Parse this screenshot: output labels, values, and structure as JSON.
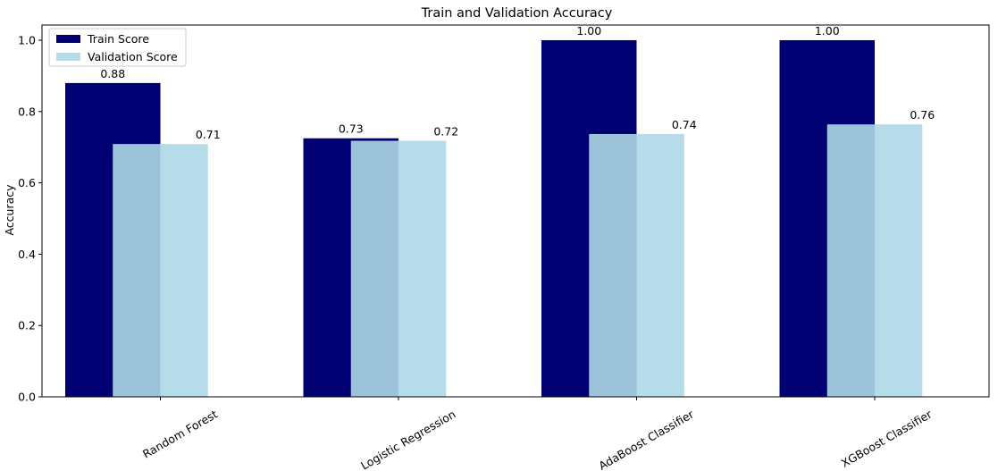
{
  "chart_data": {
    "type": "bar",
    "title": "Train and Validation Accuracy",
    "xlabel": "",
    "ylabel": "Accuracy",
    "categories": [
      "Random Forest",
      "Logistic Regression",
      "AdaBoost Classifier",
      "XGBoost Classifier"
    ],
    "series": [
      {
        "name": "Train Score",
        "values": [
          0.88,
          0.725,
          1.0,
          1.0
        ],
        "labels": [
          "0.88",
          "0.73",
          "1.00",
          "1.00"
        ],
        "color": "#000072",
        "opacity": 1.0
      },
      {
        "name": "Validation Score",
        "values": [
          0.709,
          0.718,
          0.737,
          0.764
        ],
        "labels": [
          "0.71",
          "0.72",
          "0.74",
          "0.76"
        ],
        "color": "#add8e6",
        "opacity": 0.9
      }
    ],
    "ylim": [
      0,
      1.0
    ],
    "yticks": [
      "0.0",
      "0.2",
      "0.4",
      "0.6",
      "0.8",
      "1.0"
    ],
    "legend_position": "upper-left",
    "grid": false
  }
}
